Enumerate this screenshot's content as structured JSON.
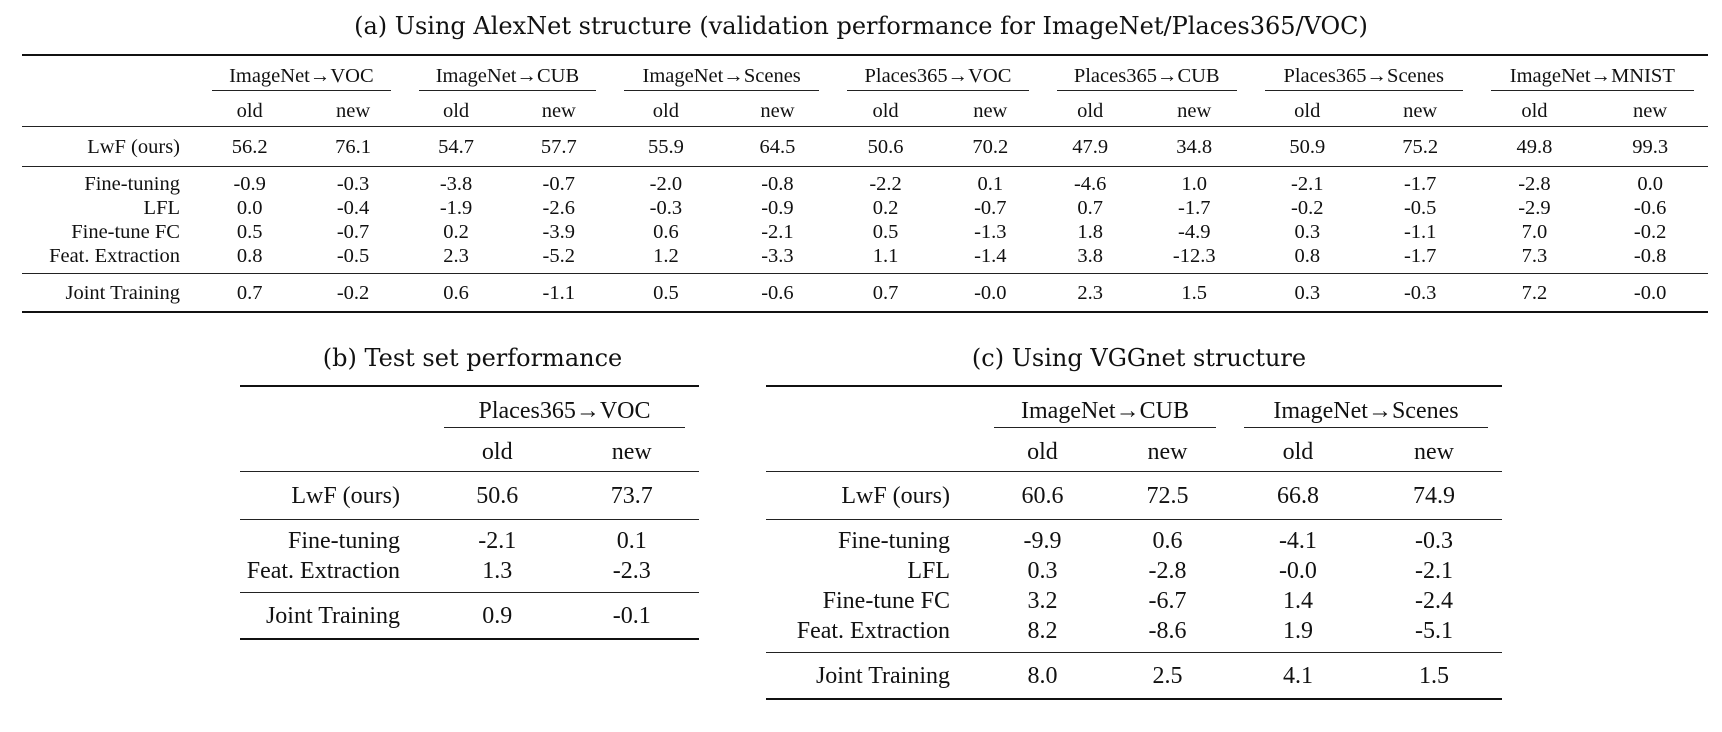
{
  "tables": [
    {
      "id": "a",
      "caption": "(a) Using AlexNet structure (validation performance for ImageNet/Places365/VOC)",
      "groups": [
        "ImageNet→VOC",
        "ImageNet→CUB",
        "ImageNet→Scenes",
        "Places365→VOC",
        "Places365→CUB",
        "Places365→Scenes",
        "ImageNet→MNIST"
      ],
      "subcols": [
        "old",
        "new"
      ],
      "rows": [
        {
          "label": "LwF (ours)",
          "values": [
            "56.2",
            "76.1",
            "54.7",
            "57.7",
            "55.9",
            "64.5",
            "50.6",
            "70.2",
            "47.9",
            "34.8",
            "50.9",
            "75.2",
            "49.8",
            "99.3"
          ]
        },
        {
          "label": "Fine-tuning",
          "values": [
            "-0.9",
            "-0.3",
            "-3.8",
            "-0.7",
            "-2.0",
            "-0.8",
            "-2.2",
            "0.1",
            "-4.6",
            "1.0",
            "-2.1",
            "-1.7",
            "-2.8",
            "0.0"
          ]
        },
        {
          "label": "LFL",
          "values": [
            "0.0",
            "-0.4",
            "-1.9",
            "-2.6",
            "-0.3",
            "-0.9",
            "0.2",
            "-0.7",
            "0.7",
            "-1.7",
            "-0.2",
            "-0.5",
            "-2.9",
            "-0.6"
          ]
        },
        {
          "label": "Fine-tune FC",
          "values": [
            "0.5",
            "-0.7",
            "0.2",
            "-3.9",
            "0.6",
            "-2.1",
            "0.5",
            "-1.3",
            "1.8",
            "-4.9",
            "0.3",
            "-1.1",
            "7.0",
            "-0.2"
          ]
        },
        {
          "label": "Feat. Extraction",
          "values": [
            "0.8",
            "-0.5",
            "2.3",
            "-5.2",
            "1.2",
            "-3.3",
            "1.1",
            "-1.4",
            "3.8",
            "-12.3",
            "0.8",
            "-1.7",
            "7.3",
            "-0.8"
          ]
        },
        {
          "label": "Joint Training",
          "values": [
            "0.7",
            "-0.2",
            "0.6",
            "-1.1",
            "0.5",
            "-0.6",
            "0.7",
            "-0.0",
            "2.3",
            "1.5",
            "0.3",
            "-0.3",
            "7.2",
            "-0.0"
          ]
        }
      ]
    },
    {
      "id": "b",
      "caption": "(b) Test set performance",
      "groups": [
        "Places365→VOC"
      ],
      "subcols": [
        "old",
        "new"
      ],
      "rows": [
        {
          "label": "LwF (ours)",
          "values": [
            "50.6",
            "73.7"
          ]
        },
        {
          "label": "Fine-tuning",
          "values": [
            "-2.1",
            "0.1"
          ]
        },
        {
          "label": "Feat. Extraction",
          "values": [
            "1.3",
            "-2.3"
          ]
        },
        {
          "label": "Joint Training",
          "values": [
            "0.9",
            "-0.1"
          ]
        }
      ]
    },
    {
      "id": "c",
      "caption": "(c) Using VGGnet structure",
      "groups": [
        "ImageNet→CUB",
        "ImageNet→Scenes"
      ],
      "subcols": [
        "old",
        "new"
      ],
      "rows": [
        {
          "label": "LwF (ours)",
          "values": [
            "60.6",
            "72.5",
            "66.8",
            "74.9"
          ]
        },
        {
          "label": "Fine-tuning",
          "values": [
            "-9.9",
            "0.6",
            "-4.1",
            "-0.3"
          ]
        },
        {
          "label": "LFL",
          "values": [
            "0.3",
            "-2.8",
            "-0.0",
            "-2.1"
          ]
        },
        {
          "label": "Fine-tune FC",
          "values": [
            "3.2",
            "-6.7",
            "1.4",
            "-2.4"
          ]
        },
        {
          "label": "Feat. Extraction",
          "values": [
            "8.2",
            "-8.6",
            "1.9",
            "-5.1"
          ]
        },
        {
          "label": "Joint Training",
          "values": [
            "8.0",
            "2.5",
            "4.1",
            "1.5"
          ]
        }
      ]
    }
  ]
}
